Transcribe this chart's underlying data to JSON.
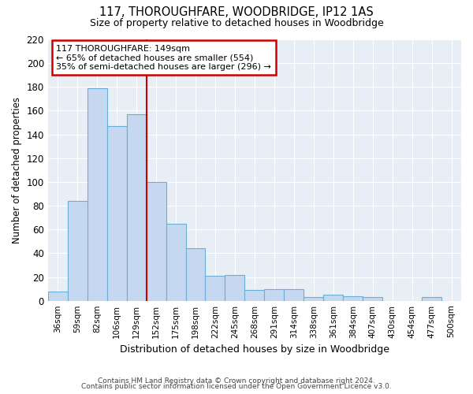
{
  "title": "117, THOROUGHFARE, WOODBRIDGE, IP12 1AS",
  "subtitle": "Size of property relative to detached houses in Woodbridge",
  "xlabel": "Distribution of detached houses by size in Woodbridge",
  "ylabel": "Number of detached properties",
  "footnote1": "Contains HM Land Registry data © Crown copyright and database right 2024.",
  "footnote2": "Contains public sector information licensed under the Open Government Licence v3.0.",
  "categories": [
    "36sqm",
    "59sqm",
    "82sqm",
    "106sqm",
    "129sqm",
    "152sqm",
    "175sqm",
    "198sqm",
    "222sqm",
    "245sqm",
    "268sqm",
    "291sqm",
    "314sqm",
    "338sqm",
    "361sqm",
    "384sqm",
    "407sqm",
    "430sqm",
    "454sqm",
    "477sqm",
    "500sqm"
  ],
  "values": [
    8,
    84,
    179,
    147,
    157,
    100,
    65,
    44,
    21,
    22,
    9,
    10,
    10,
    3,
    5,
    4,
    3,
    0,
    0,
    3,
    0
  ],
  "bar_color": "#c5d8f0",
  "bar_edge_color": "#6aaed6",
  "annotation_line1": "117 THOROUGHFARE: 149sqm",
  "annotation_line2": "← 65% of detached houses are smaller (554)",
  "annotation_line3": "35% of semi-detached houses are larger (296) →",
  "annotation_box_color": "#ffffff",
  "annotation_border_color": "#cc0000",
  "vline_color": "#cc0000",
  "vline_x_index": 5,
  "ylim": [
    0,
    220
  ],
  "yticks": [
    0,
    20,
    40,
    60,
    80,
    100,
    120,
    140,
    160,
    180,
    200,
    220
  ],
  "bg_color": "#ffffff",
  "plot_bg_color": "#e8eef5",
  "grid_color": "#ffffff"
}
